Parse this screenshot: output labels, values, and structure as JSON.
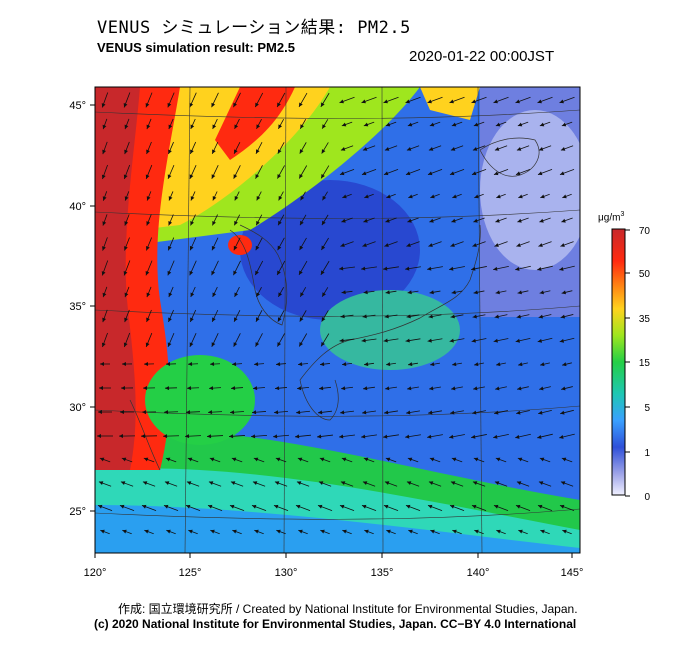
{
  "header": {
    "title_jp": "VENUS シミュレーション結果: PM2.5",
    "title_en": "VENUS simulation result: PM2.5",
    "timestamp": "2020-01-22 00:00JST"
  },
  "map": {
    "lon_labels": [
      "120°",
      "125°",
      "130°",
      "135°",
      "140°",
      "145°"
    ],
    "lat_labels": [
      "45°",
      "40°",
      "35°",
      "30°",
      "25°"
    ]
  },
  "colorbar": {
    "unit_main": "μg/m",
    "unit_sup": "3",
    "ticks": [
      "70",
      "50",
      "35",
      "15",
      "5",
      "1",
      "0"
    ],
    "colors": [
      "#c8282b",
      "#ff2a10",
      "#ff8a14",
      "#ffd21e",
      "#9fe61e",
      "#24cf46",
      "#1ec7b4",
      "#3aa0ff",
      "#2f50d8",
      "#9ea4e8",
      "#f0f0ff"
    ]
  },
  "footer": {
    "credit": "作成: 国立環境研究所 / Created by National Institute for Environmental Studies, Japan.",
    "copyright": "(c) 2020 National Institute for Environmental Studies, Japan. CC−BY 4.0 International"
  }
}
